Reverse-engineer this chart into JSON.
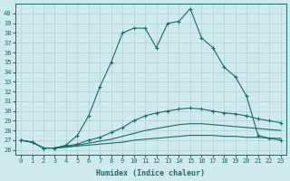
{
  "xlabel": "Humidex (Indice chaleur)",
  "background_color": "#ceeaea",
  "grid_color": "#b0d0d0",
  "line_color": "#1a6b6b",
  "xlim": [
    -0.5,
    23.5
  ],
  "ylim": [
    25.5,
    41.0
  ],
  "yticks": [
    26,
    27,
    28,
    29,
    30,
    31,
    32,
    33,
    34,
    35,
    36,
    37,
    38,
    39,
    40
  ],
  "xticks": [
    0,
    1,
    2,
    3,
    4,
    5,
    6,
    7,
    8,
    9,
    10,
    11,
    12,
    13,
    14,
    15,
    16,
    17,
    18,
    19,
    20,
    21,
    22,
    23
  ],
  "series": [
    {
      "x": [
        0,
        1,
        2,
        3,
        4,
        5,
        6,
        7,
        8,
        9,
        10,
        11,
        12,
        13,
        14,
        15,
        16,
        17,
        18,
        19,
        20,
        21,
        22,
        23
      ],
      "y": [
        27.0,
        26.8,
        26.2,
        26.2,
        26.5,
        27.5,
        29.5,
        32.5,
        35.0,
        38.0,
        38.5,
        38.5,
        36.5,
        39.0,
        39.2,
        40.5,
        37.5,
        36.5,
        34.5,
        33.5,
        31.5,
        27.5,
        27.2,
        27.0
      ],
      "marker": true
    },
    {
      "x": [
        0,
        1,
        2,
        3,
        4,
        5,
        6,
        7,
        8,
        9,
        10,
        11,
        12,
        13,
        14,
        15,
        16,
        17,
        18,
        19,
        20,
        21,
        22,
        23
      ],
      "y": [
        27.0,
        26.8,
        26.2,
        26.2,
        26.4,
        26.6,
        27.0,
        27.3,
        27.8,
        28.3,
        29.0,
        29.5,
        29.8,
        30.0,
        30.2,
        30.3,
        30.2,
        30.0,
        29.8,
        29.7,
        29.5,
        29.2,
        29.0,
        28.8
      ],
      "marker": true
    },
    {
      "x": [
        0,
        1,
        2,
        3,
        4,
        5,
        6,
        7,
        8,
        9,
        10,
        11,
        12,
        13,
        14,
        15,
        16,
        17,
        18,
        19,
        20,
        21,
        22,
        23
      ],
      "y": [
        27.0,
        26.8,
        26.2,
        26.2,
        26.3,
        26.5,
        26.7,
        26.9,
        27.1,
        27.4,
        27.7,
        28.0,
        28.2,
        28.4,
        28.6,
        28.7,
        28.7,
        28.6,
        28.5,
        28.4,
        28.3,
        28.2,
        28.1,
        28.0
      ],
      "marker": false
    },
    {
      "x": [
        0,
        1,
        2,
        3,
        4,
        5,
        6,
        7,
        8,
        9,
        10,
        11,
        12,
        13,
        14,
        15,
        16,
        17,
        18,
        19,
        20,
        21,
        22,
        23
      ],
      "y": [
        27.0,
        26.8,
        26.2,
        26.2,
        26.3,
        26.4,
        26.5,
        26.6,
        26.7,
        26.8,
        27.0,
        27.1,
        27.2,
        27.3,
        27.4,
        27.5,
        27.5,
        27.5,
        27.4,
        27.4,
        27.3,
        27.3,
        27.2,
        27.2
      ],
      "marker": false
    }
  ]
}
